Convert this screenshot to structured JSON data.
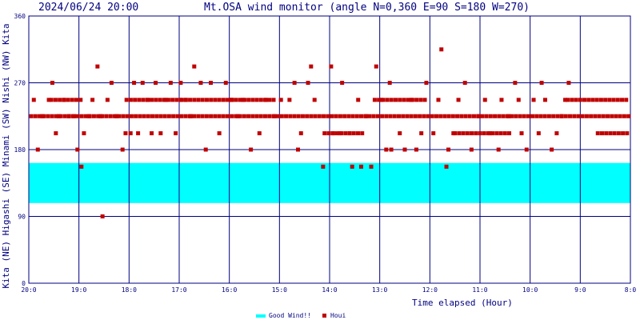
{
  "header": {
    "timestamp": "2024/06/24 20:00",
    "title": "Mt.OSA wind monitor (angle N=0,360 E=90 S=180 W=270)"
  },
  "chart_data": {
    "type": "scatter",
    "xlabel": "Time elapsed (Hour)",
    "ylabel": "Kita (NE) Higashi (SE) Minami (SW) Nishi (NW) Kita",
    "ylim": [
      0,
      360
    ],
    "xlim": [
      20,
      8
    ],
    "x_direction": "descending-left-to-right",
    "grid": true,
    "legend_position": "bottom-center",
    "y_ticks": [
      "0",
      "90",
      "180",
      "270",
      "360"
    ],
    "x_ticks": [
      "20:0",
      "19:0",
      "18:0",
      "17:0",
      "16:0",
      "15:0",
      "14:0",
      "13:0",
      "12:0",
      "11:0",
      "10:0",
      "9:0",
      "8:0"
    ],
    "y_axis_segments": [
      "Kita",
      "(NE)",
      "Higashi",
      "(SE)",
      "Minami",
      "(SW)",
      "Nishi",
      "(NW)",
      "Kita"
    ],
    "good_wind_band": {
      "name": "Good Wind!!",
      "from": 108,
      "to": 162,
      "color": "#00ffff"
    },
    "series": [
      {
        "name": "Houi",
        "color": "#c00000",
        "points": [
          [
            19.9,
            247
          ],
          [
            19.82,
            180
          ],
          [
            19.73,
            225
          ],
          [
            19.6,
            247
          ],
          [
            19.53,
            270
          ],
          [
            19.46,
            202
          ],
          [
            19.4,
            225
          ],
          [
            19.3,
            247
          ],
          [
            19.2,
            225
          ],
          [
            19.1,
            225
          ],
          [
            19.03,
            180
          ],
          [
            18.95,
            157
          ],
          [
            18.9,
            202
          ],
          [
            18.8,
            225
          ],
          [
            18.73,
            247
          ],
          [
            18.63,
            292
          ],
          [
            18.57,
            225
          ],
          [
            18.53,
            90
          ],
          [
            18.43,
            247
          ],
          [
            18.35,
            270
          ],
          [
            18.25,
            225
          ],
          [
            18.13,
            180
          ],
          [
            18.07,
            202
          ],
          [
            17.97,
            202
          ],
          [
            17.9,
            270
          ],
          [
            17.82,
            202
          ],
          [
            17.73,
            270
          ],
          [
            17.63,
            247
          ],
          [
            17.55,
            202
          ],
          [
            17.47,
            270
          ],
          [
            17.37,
            202
          ],
          [
            17.27,
            247
          ],
          [
            17.17,
            270
          ],
          [
            17.07,
            202
          ],
          [
            16.97,
            270
          ],
          [
            16.87,
            247
          ],
          [
            16.77,
            225
          ],
          [
            16.7,
            292
          ],
          [
            16.57,
            270
          ],
          [
            16.47,
            180
          ],
          [
            16.37,
            270
          ],
          [
            16.2,
            202
          ],
          [
            16.07,
            270
          ],
          [
            15.97,
            247
          ],
          [
            15.83,
            225
          ],
          [
            15.73,
            247
          ],
          [
            15.57,
            180
          ],
          [
            15.4,
            202
          ],
          [
            15.27,
            247
          ],
          [
            15.1,
            225
          ],
          [
            14.97,
            247
          ],
          [
            14.8,
            247
          ],
          [
            14.7,
            270
          ],
          [
            14.63,
            180
          ],
          [
            14.57,
            202
          ],
          [
            14.43,
            270
          ],
          [
            14.37,
            292
          ],
          [
            14.3,
            247
          ],
          [
            14.13,
            157
          ],
          [
            13.97,
            292
          ],
          [
            13.93,
            202
          ],
          [
            13.8,
            202
          ],
          [
            13.75,
            270
          ],
          [
            13.6,
            202
          ],
          [
            13.55,
            157
          ],
          [
            13.43,
            247
          ],
          [
            13.37,
            157
          ],
          [
            13.27,
            225
          ],
          [
            13.17,
            157
          ],
          [
            13.07,
            292
          ],
          [
            12.97,
            247
          ],
          [
            12.87,
            180
          ],
          [
            12.8,
            270
          ],
          [
            12.77,
            180
          ],
          [
            12.6,
            202
          ],
          [
            12.5,
            180
          ],
          [
            12.37,
            247
          ],
          [
            12.27,
            180
          ],
          [
            12.17,
            202
          ],
          [
            12.07,
            270
          ],
          [
            11.93,
            202
          ],
          [
            11.83,
            247
          ],
          [
            11.77,
            315
          ],
          [
            11.67,
            157
          ],
          [
            11.63,
            180
          ],
          [
            11.53,
            202
          ],
          [
            11.43,
            247
          ],
          [
            11.3,
            270
          ],
          [
            11.17,
            180
          ],
          [
            11.03,
            225
          ],
          [
            10.9,
            247
          ],
          [
            10.8,
            202
          ],
          [
            10.63,
            180
          ],
          [
            10.57,
            247
          ],
          [
            10.43,
            225
          ],
          [
            10.3,
            270
          ],
          [
            10.23,
            247
          ],
          [
            10.17,
            202
          ],
          [
            10.07,
            180
          ],
          [
            9.93,
            247
          ],
          [
            9.83,
            202
          ],
          [
            9.77,
            270
          ],
          [
            9.7,
            247
          ],
          [
            9.57,
            180
          ],
          [
            9.47,
            202
          ],
          [
            9.37,
            225
          ],
          [
            9.3,
            247
          ],
          [
            9.23,
            270
          ]
        ]
      }
    ],
    "dense_runs": [
      {
        "from": 19.95,
        "to": 8.0,
        "step": 0.0833,
        "y": 225
      },
      {
        "from": 19.55,
        "to": 18.95,
        "step": 0.0833,
        "y": 247
      },
      {
        "from": 18.05,
        "to": 16.95,
        "step": 0.0833,
        "y": 247
      },
      {
        "from": 16.95,
        "to": 15.95,
        "step": 0.0833,
        "y": 247
      },
      {
        "from": 15.95,
        "to": 15.1,
        "step": 0.0833,
        "y": 247
      },
      {
        "from": 14.1,
        "to": 13.3,
        "step": 0.0833,
        "y": 202
      },
      {
        "from": 13.1,
        "to": 12.1,
        "step": 0.0833,
        "y": 247
      },
      {
        "from": 11.5,
        "to": 10.4,
        "step": 0.0833,
        "y": 202
      },
      {
        "from": 9.25,
        "to": 8.05,
        "step": 0.0833,
        "y": 247
      },
      {
        "from": 8.65,
        "to": 8.05,
        "step": 0.0833,
        "y": 202
      }
    ]
  },
  "legend": {
    "good_wind_label": "Good Wind!!",
    "houi_label": "Houi"
  }
}
